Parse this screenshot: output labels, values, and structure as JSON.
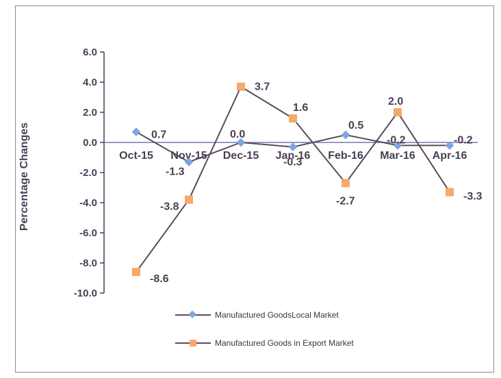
{
  "chart_data": {
    "type": "line",
    "ylabel": "Percentage Changes",
    "ylim": [
      -10.0,
      6.0
    ],
    "yticks": [
      "6.0",
      "4.0",
      "2.0",
      "0.0",
      "-2.0",
      "-4.0",
      "-6.0",
      "-8.0",
      "-10.0"
    ],
    "ytick_values": [
      6,
      4,
      2,
      0,
      -2,
      -4,
      -6,
      -8,
      -10
    ],
    "categories": [
      "Oct-15",
      "Nov-15",
      "Dec-15",
      "Jan-16",
      "Feb-16",
      "Mar-16",
      "Apr-16"
    ],
    "series": [
      {
        "name": "Manufactured GoodsLocal Market",
        "values": [
          0.7,
          -1.3,
          0.0,
          -0.3,
          0.5,
          -0.2,
          -0.2
        ],
        "labels": [
          "0.7",
          "-1.3",
          "0.0",
          "-0.3",
          "0.5",
          "-0.2",
          "-0.2"
        ],
        "marker": "diamond",
        "marker_color": "#7ea6e0",
        "line_color": "#5a4a5c"
      },
      {
        "name": "Manufactured Goods in Export Market",
        "values": [
          -8.6,
          -3.8,
          3.7,
          1.6,
          -2.7,
          2.0,
          -3.3
        ],
        "labels": [
          "-8.6",
          "-3.8",
          "3.7",
          "1.6",
          "-2.7",
          "2.0",
          "-3.3"
        ],
        "marker": "square",
        "marker_color": "#f6a96a",
        "line_color": "#5a4a5c"
      }
    ],
    "grid": false,
    "legend": "bottom"
  },
  "colors": {
    "axis": "#3a3f5a",
    "zero_line": "#6f78b0",
    "text": "#4a3e52"
  }
}
